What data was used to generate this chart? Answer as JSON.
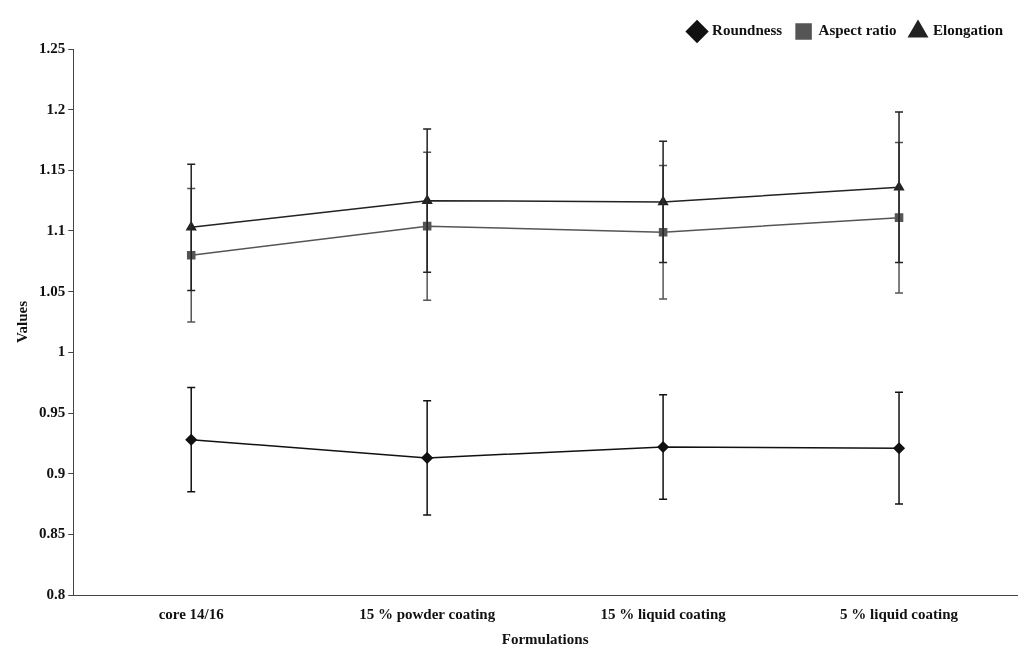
{
  "chart_data": {
    "type": "line",
    "xlabel": "Formulations",
    "ylabel": "Values",
    "categories": [
      "core 14/16",
      "15 % powder coating",
      "15 % liquid coating",
      "5 % liquid coating"
    ],
    "series": [
      {
        "name": "Roundness",
        "color": "#111111",
        "marker": "diamond",
        "values": [
          0.928,
          0.913,
          0.922,
          0.921
        ],
        "errors": [
          0.043,
          0.047,
          0.043,
          0.046
        ]
      },
      {
        "name": "Aspect ratio",
        "color": "#555555",
        "marker": "square",
        "values": [
          1.08,
          1.104,
          1.099,
          1.111
        ],
        "errors": [
          0.055,
          0.061,
          0.055,
          0.062
        ]
      },
      {
        "name": "Elongation",
        "color": "#222222",
        "marker": "triangle",
        "values": [
          1.103,
          1.125,
          1.124,
          1.136
        ],
        "errors": [
          0.052,
          0.059,
          0.05,
          0.062
        ]
      }
    ],
    "ylim": [
      0.8,
      1.25
    ],
    "yticks": [
      0.8,
      0.85,
      0.9,
      0.95,
      1,
      1.05,
      1.1,
      1.15,
      1.2,
      1.25
    ],
    "grid": false,
    "legend": "top right",
    "line_style": "solid"
  }
}
